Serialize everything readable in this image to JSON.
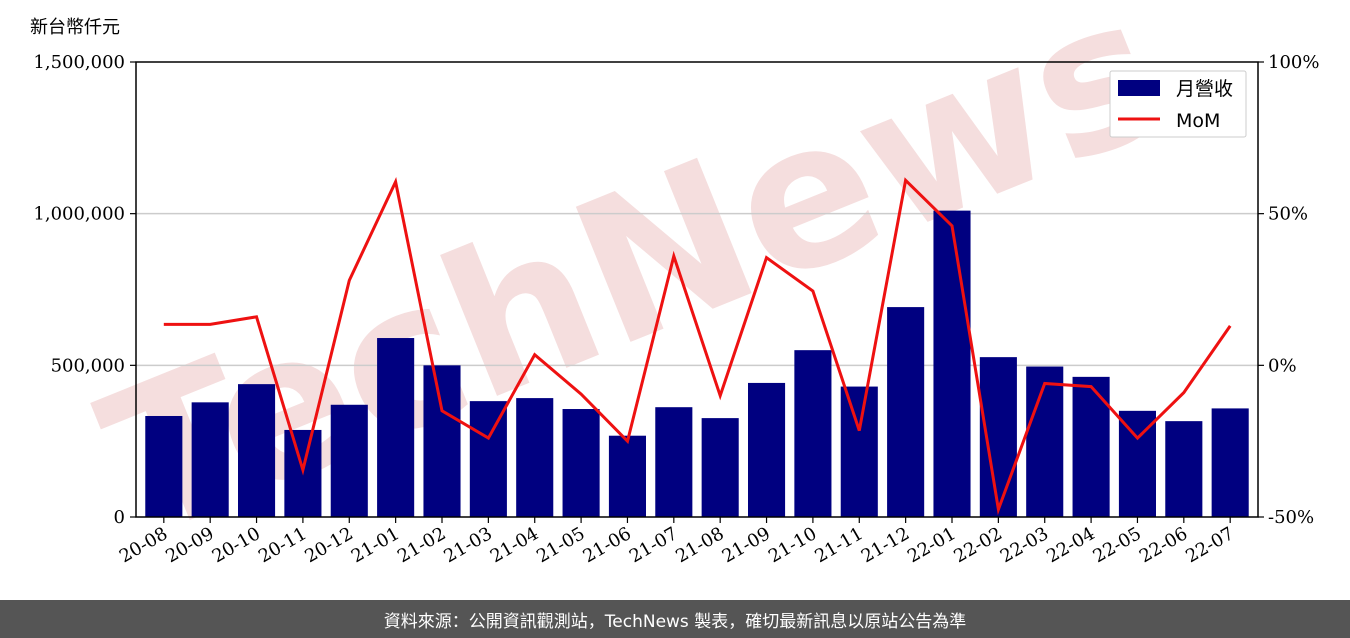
{
  "watermark": "TechNews",
  "footer": {
    "source": "資料來源：公開資訊觀測站，TechNews 製表，確切最新訊息以原站公告為準"
  },
  "colors": {
    "bar": "#000080",
    "line": "#ee1111",
    "grid": "#cccccc",
    "watermark": "#f5dede"
  },
  "chart_data": {
    "type": "bar",
    "ylabel": "新台幣仟元",
    "categories": [
      "20-08",
      "20-09",
      "20-10",
      "20-11",
      "20-12",
      "21-01",
      "21-02",
      "21-03",
      "21-04",
      "21-05",
      "21-06",
      "21-07",
      "21-08",
      "21-09",
      "21-10",
      "21-11",
      "21-12",
      "22-01",
      "22-02",
      "22-03",
      "22-04",
      "22-05",
      "22-06",
      "22-07"
    ],
    "series": [
      {
        "name": "月營收",
        "type": "bar",
        "axis": "left",
        "values": [
          333000,
          378000,
          438000,
          287000,
          370000,
          590000,
          500000,
          382000,
          392000,
          356000,
          268000,
          362000,
          326000,
          442000,
          550000,
          430000,
          692000,
          1010000,
          527000,
          496000,
          462000,
          350000,
          316000,
          358000
        ]
      },
      {
        "name": "MoM",
        "type": "line",
        "axis": "right",
        "values": [
          13.5,
          13.5,
          16.0,
          -34.5,
          28.0,
          60.5,
          -15.0,
          -24.0,
          3.5,
          -9.5,
          -25.0,
          36.0,
          -10.0,
          35.5,
          24.5,
          -21.5,
          61.0,
          46.0,
          -47.5,
          -6.0,
          -7.0,
          -24.0,
          -9.0,
          13.0
        ]
      }
    ],
    "y_left": {
      "lim": [
        0,
        1500000
      ],
      "ticks": [
        0,
        500000,
        1000000,
        1500000
      ],
      "tick_labels": [
        "0",
        "500,000",
        "1,000,000",
        "1,500,000"
      ]
    },
    "y_right": {
      "lim": [
        -50,
        100
      ],
      "ticks": [
        -50,
        0,
        50,
        100
      ],
      "tick_labels": [
        "-50%",
        "0%",
        "50%",
        "100%"
      ]
    },
    "grid": "horizontal",
    "legend": "top-right"
  }
}
